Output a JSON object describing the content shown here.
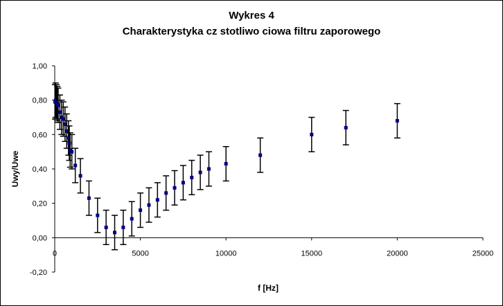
{
  "chart_data": {
    "type": "scatter",
    "title": "Wykres 4",
    "subtitle": "Charakterystyka cz  stotliwo  ciowa filtru zaporowego",
    "xlabel": "f [Hz]",
    "ylabel": "Uwy/Uwe",
    "xlim": [
      0,
      25000
    ],
    "ylim": [
      -0.2,
      1.0
    ],
    "xticks": [
      0,
      5000,
      10000,
      15000,
      20000,
      25000
    ],
    "xtick_labels": [
      "0",
      "5000",
      "10000",
      "15000",
      "20000",
      "25000"
    ],
    "yticks": [
      -0.2,
      0,
      0.2,
      0.4,
      0.6,
      0.8,
      1.0
    ],
    "ytick_labels": [
      "-0,20",
      "0,00",
      "0,20",
      "0,40",
      "0,60",
      "0,80",
      "1,00"
    ],
    "grid": false,
    "legend": "none",
    "marker_color": "#000080",
    "error_bar": 0.1,
    "points": [
      {
        "x": 20,
        "y": 0.79
      },
      {
        "x": 50,
        "y": 0.8
      },
      {
        "x": 100,
        "y": 0.79
      },
      {
        "x": 150,
        "y": 0.78
      },
      {
        "x": 200,
        "y": 0.77
      },
      {
        "x": 300,
        "y": 0.73
      },
      {
        "x": 400,
        "y": 0.7
      },
      {
        "x": 500,
        "y": 0.69
      },
      {
        "x": 600,
        "y": 0.66
      },
      {
        "x": 700,
        "y": 0.62
      },
      {
        "x": 800,
        "y": 0.58
      },
      {
        "x": 850,
        "y": 0.55
      },
      {
        "x": 900,
        "y": 0.51
      },
      {
        "x": 1000,
        "y": 0.5
      },
      {
        "x": 1200,
        "y": 0.42
      },
      {
        "x": 1500,
        "y": 0.36
      },
      {
        "x": 2000,
        "y": 0.23
      },
      {
        "x": 2500,
        "y": 0.13
      },
      {
        "x": 3000,
        "y": 0.06
      },
      {
        "x": 3500,
        "y": 0.03
      },
      {
        "x": 4000,
        "y": 0.06
      },
      {
        "x": 4500,
        "y": 0.11
      },
      {
        "x": 5000,
        "y": 0.16
      },
      {
        "x": 5500,
        "y": 0.19
      },
      {
        "x": 6000,
        "y": 0.22
      },
      {
        "x": 6500,
        "y": 0.26
      },
      {
        "x": 7000,
        "y": 0.29
      },
      {
        "x": 7500,
        "y": 0.32
      },
      {
        "x": 8000,
        "y": 0.35
      },
      {
        "x": 8500,
        "y": 0.38
      },
      {
        "x": 9000,
        "y": 0.4
      },
      {
        "x": 10000,
        "y": 0.43
      },
      {
        "x": 12000,
        "y": 0.48
      },
      {
        "x": 15000,
        "y": 0.6
      },
      {
        "x": 17000,
        "y": 0.64
      },
      {
        "x": 20000,
        "y": 0.68
      }
    ]
  }
}
